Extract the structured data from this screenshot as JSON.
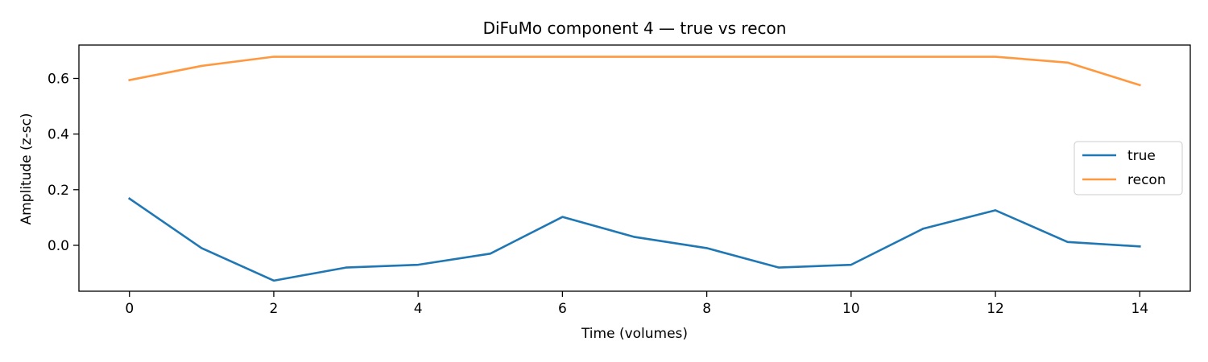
{
  "chart_data": {
    "type": "line",
    "title": "DiFuMo component 4 — true vs recon",
    "xlabel": "Time (volumes)",
    "ylabel": "Amplitude (z-sc)",
    "xlim": [
      -0.7,
      14.7
    ],
    "ylim": [
      -0.165,
      0.72
    ],
    "xticks": [
      0,
      2,
      4,
      6,
      8,
      10,
      12,
      14
    ],
    "xtick_labels": [
      "0",
      "2",
      "4",
      "6",
      "8",
      "10",
      "12",
      "14"
    ],
    "yticks": [
      0.0,
      0.2,
      0.4,
      0.6
    ],
    "ytick_labels": [
      "0.0",
      "0.2",
      "0.4",
      "0.6"
    ],
    "grid": false,
    "legend_position": "center-right",
    "x": [
      0,
      1,
      2,
      3,
      4,
      5,
      6,
      7,
      8,
      9,
      10,
      11,
      12,
      13,
      14
    ],
    "series": [
      {
        "name": "true",
        "color": "#1f77b4",
        "values": [
          0.168,
          -0.01,
          -0.127,
          -0.08,
          -0.07,
          -0.03,
          0.102,
          0.03,
          -0.01,
          -0.08,
          -0.07,
          0.06,
          0.126,
          0.012,
          -0.004
        ]
      },
      {
        "name": "recon",
        "color": "#ff983e",
        "values": [
          0.594,
          0.645,
          0.678,
          0.678,
          0.678,
          0.678,
          0.678,
          0.678,
          0.678,
          0.678,
          0.678,
          0.678,
          0.678,
          0.657,
          0.576
        ]
      }
    ]
  }
}
